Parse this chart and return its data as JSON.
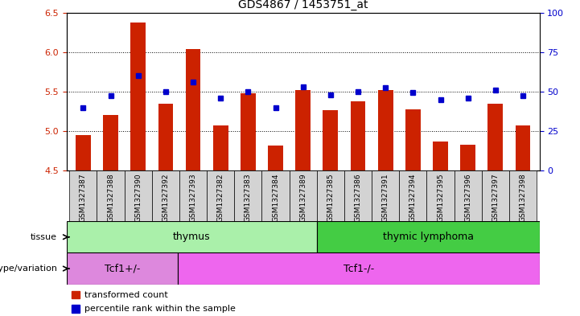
{
  "title": "GDS4867 / 1453751_at",
  "samples": [
    "GSM1327387",
    "GSM1327388",
    "GSM1327390",
    "GSM1327392",
    "GSM1327393",
    "GSM1327382",
    "GSM1327383",
    "GSM1327384",
    "GSM1327389",
    "GSM1327385",
    "GSM1327386",
    "GSM1327391",
    "GSM1327394",
    "GSM1327395",
    "GSM1327396",
    "GSM1327397",
    "GSM1327398"
  ],
  "red_values": [
    4.95,
    5.2,
    6.38,
    5.35,
    6.04,
    5.07,
    5.48,
    4.82,
    5.52,
    5.27,
    5.38,
    5.52,
    5.28,
    4.87,
    4.83,
    5.35,
    5.07
  ],
  "blue_values": [
    5.3,
    5.45,
    5.7,
    5.5,
    5.62,
    5.42,
    5.5,
    5.3,
    5.56,
    5.46,
    5.5,
    5.55,
    5.49,
    5.4,
    5.42,
    5.52,
    5.45
  ],
  "ylim_left": [
    4.5,
    6.5
  ],
  "ylim_right": [
    0,
    100
  ],
  "yticks_left": [
    4.5,
    5.0,
    5.5,
    6.0,
    6.5
  ],
  "yticks_right": [
    0,
    25,
    50,
    75,
    100
  ],
  "grid_lines": [
    5.0,
    5.5,
    6.0
  ],
  "tissue_groups": [
    {
      "label": "thymus",
      "start": 0,
      "end": 9,
      "color": "#aaf0aa"
    },
    {
      "label": "thymic lymphoma",
      "start": 9,
      "end": 17,
      "color": "#44cc44"
    }
  ],
  "genotype_groups": [
    {
      "label": "Tcf1+/-",
      "start": 0,
      "end": 4,
      "color": "#dd88dd"
    },
    {
      "label": "Tcf1-/-",
      "start": 4,
      "end": 17,
      "color": "#ee66ee"
    }
  ],
  "bar_color": "#cc2200",
  "dot_color": "#0000cc",
  "bar_width": 0.55,
  "tick_bg_color": "#d3d3d3",
  "plot_bg": "#ffffff",
  "legend_items": [
    "transformed count",
    "percentile rank within the sample"
  ],
  "tissue_label": "tissue",
  "genotype_label": "genotype/variation",
  "left_axis_color": "#cc2200",
  "right_axis_color": "#0000cc",
  "n_samples": 17
}
